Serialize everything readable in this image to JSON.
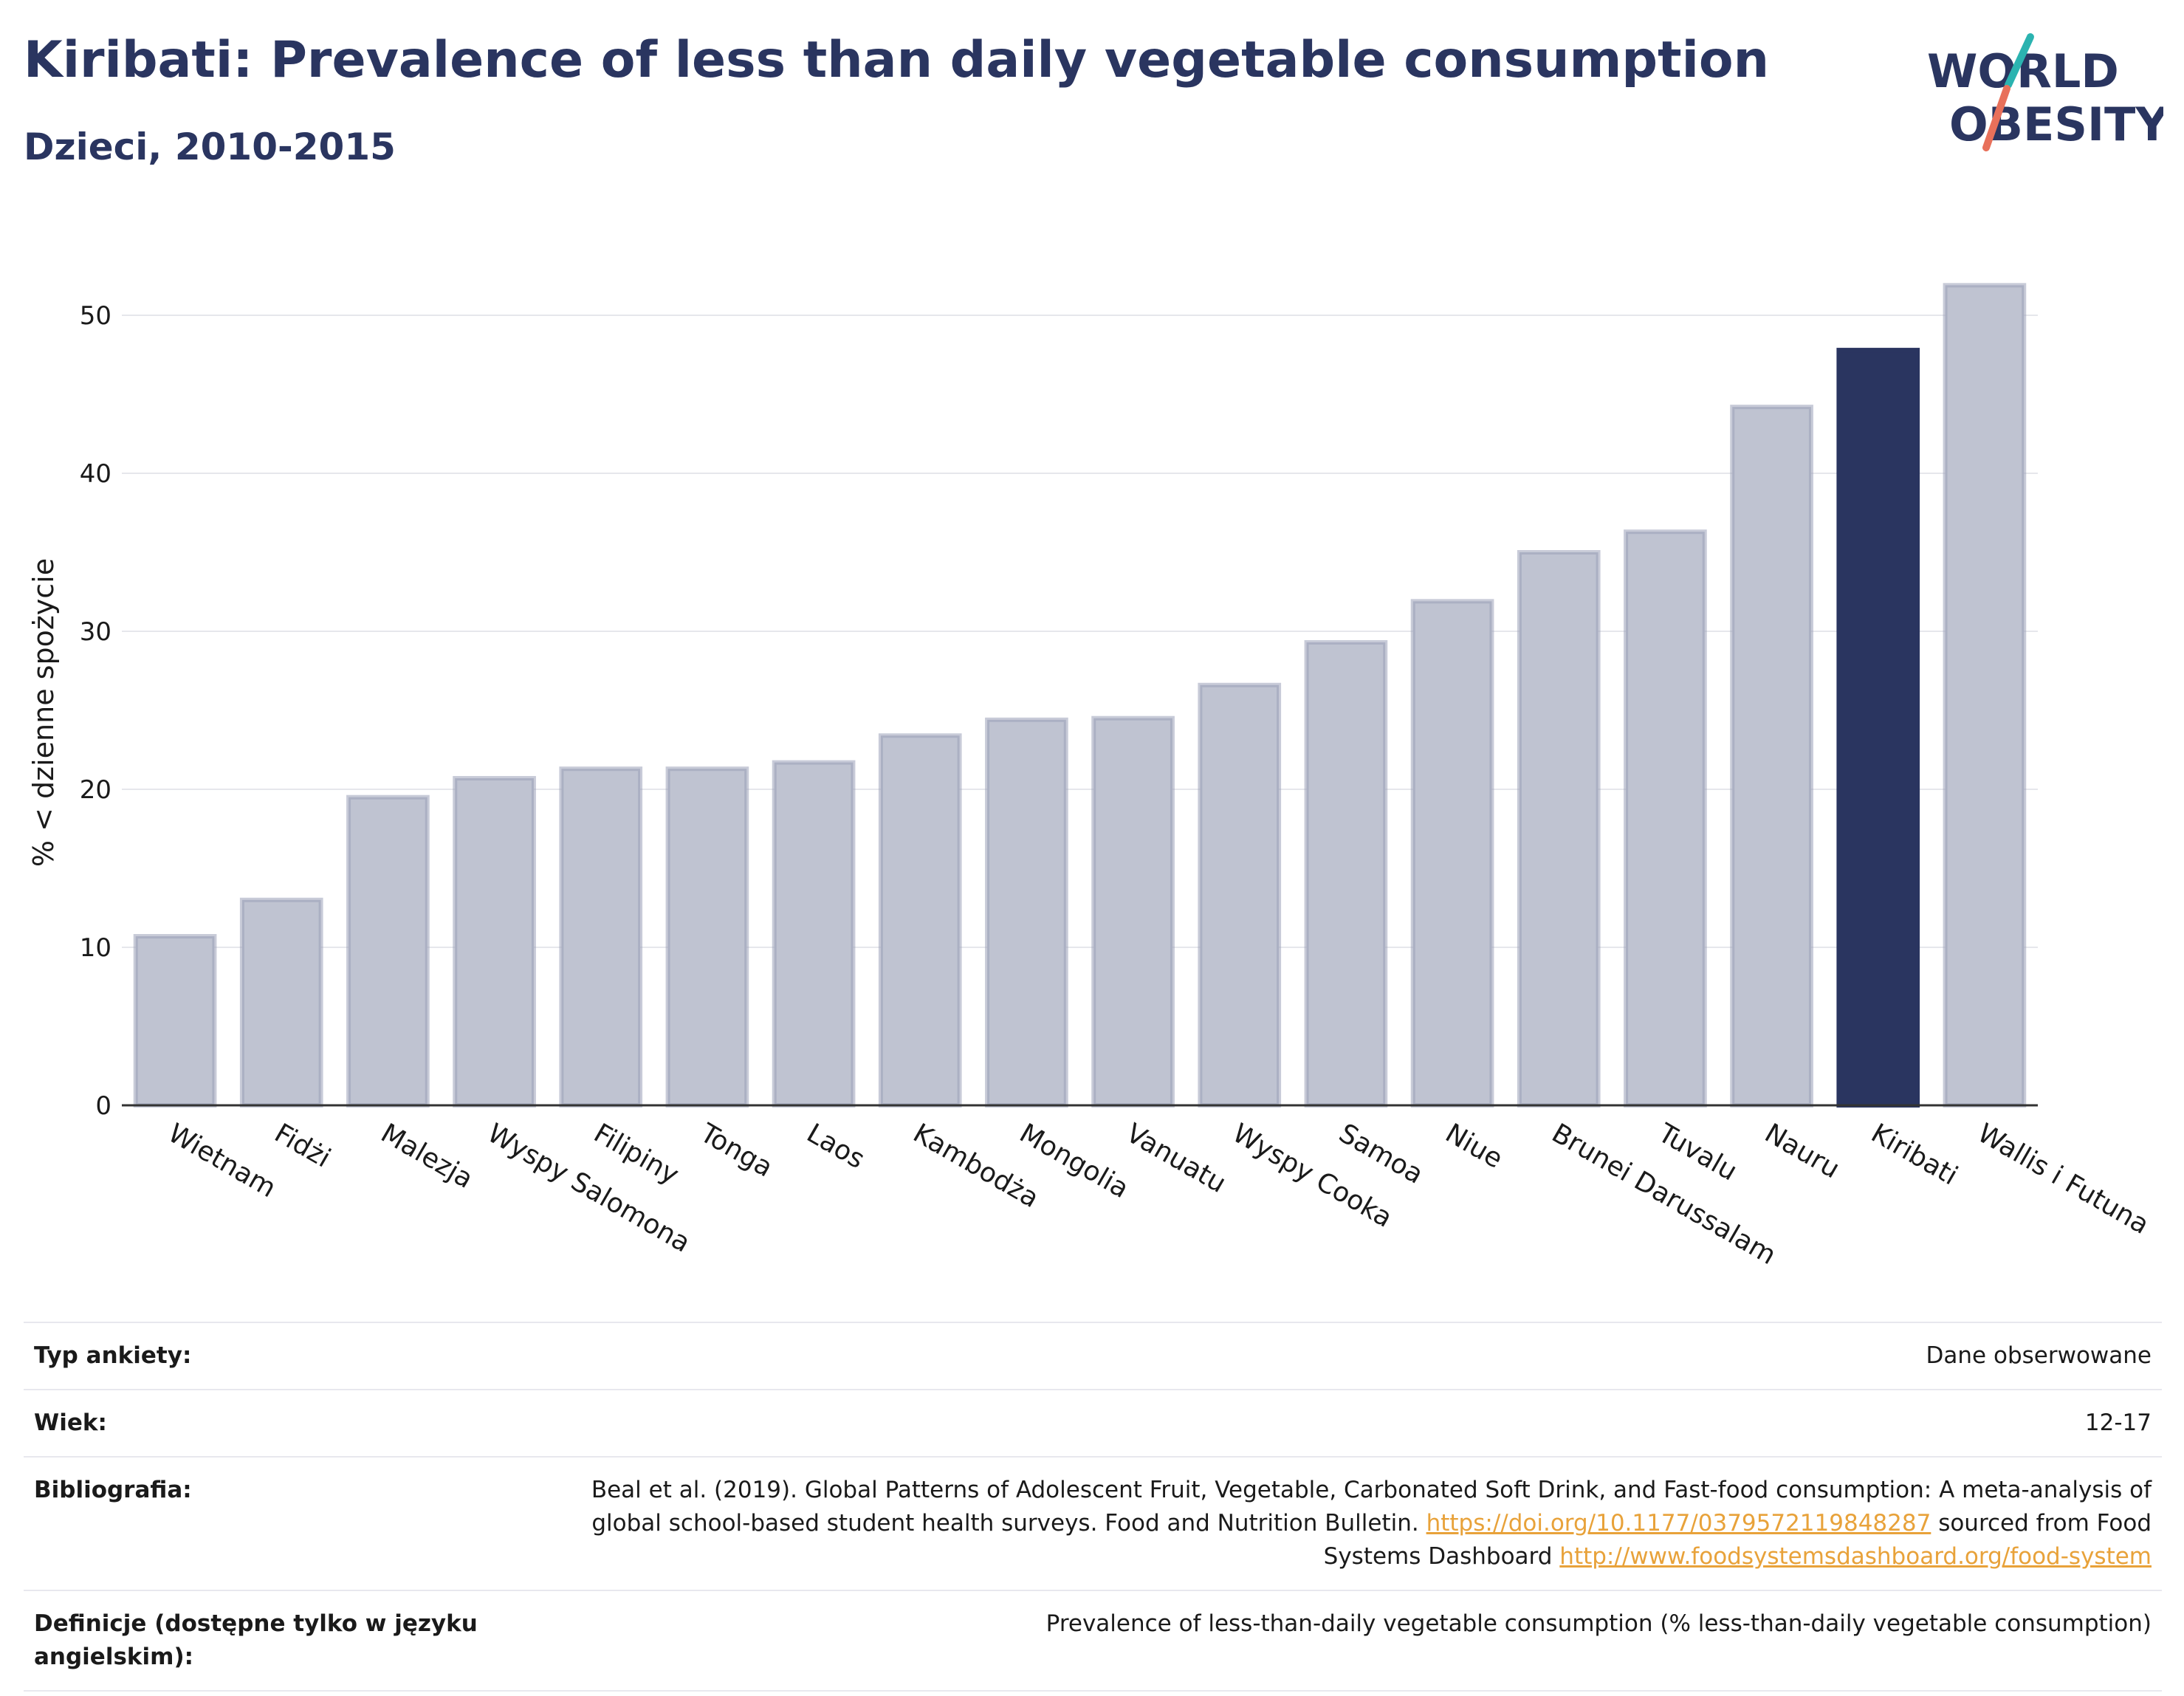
{
  "title": "Kiribati: Prevalence of less than daily vegetable consumption",
  "subtitle": "Dzieci, 2010-2015",
  "logo": {
    "line1": "WORLD",
    "line2": "OBESITY"
  },
  "colors": {
    "highlight": "#2a3560",
    "bar": "#bfc3d1",
    "bar_outline": "#9aa0b8",
    "text": "#2a3560",
    "link": "#e8a23a"
  },
  "chart_data": {
    "type": "bar",
    "ylabel": "% < dzienne spożycie",
    "ylim": [
      0,
      55
    ],
    "yticks": [
      0,
      10,
      20,
      30,
      40,
      50
    ],
    "grid": true,
    "highlight": "Kiribati",
    "categories": [
      "Wietnam",
      "Fidżi",
      "Malezja",
      "Wyspy Salomona",
      "Filipiny",
      "Tonga",
      "Laos",
      "Kambodża",
      "Mongolia",
      "Vanuatu",
      "Wyspy Cooka",
      "Samoa",
      "Niue",
      "Brunei Darussalam",
      "Tuvalu",
      "Nauru",
      "Kiribati",
      "Wallis i Futuna"
    ],
    "values": [
      10.7,
      13.0,
      19.5,
      20.7,
      21.3,
      21.3,
      21.7,
      23.4,
      24.4,
      24.5,
      26.6,
      29.3,
      31.9,
      35.0,
      36.3,
      44.2,
      47.8,
      51.9
    ]
  },
  "meta": {
    "survey_label": "Typ ankiety:",
    "survey_value": "Dane obserwowane",
    "age_label": "Wiek:",
    "age_value": "12-17",
    "bib_label": "Bibliografia:",
    "bib_text1": "Beal et al. (2019). Global Patterns of Adolescent Fruit, Vegetable, Carbonated Soft Drink, and Fast-food consumption: A meta-analysis of global school-based student health surveys. Food and Nutrition Bulletin.",
    "bib_link1": "https://doi.org/10.1177/0379572119848287",
    "bib_text2": "sourced from Food Systems Dashboard",
    "bib_link2": "http://www.foodsystemsdashboard.org/food-system",
    "def_label": "Definicje (dostępne tylko w języku angielskim):",
    "def_value": "Prevalence of less-than-daily vegetable consumption (% less-than-daily vegetable consumption)"
  }
}
